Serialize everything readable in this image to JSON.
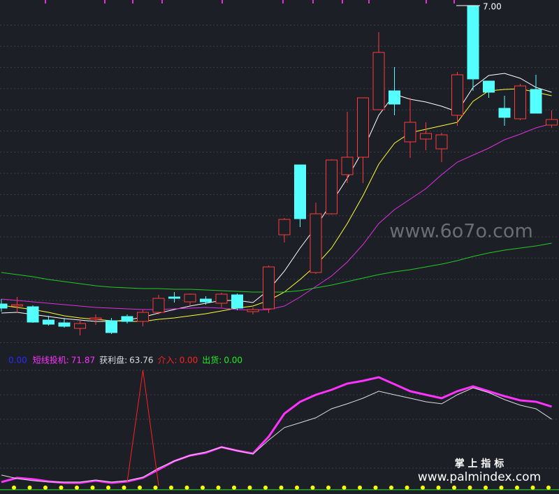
{
  "chart_data": [
    {
      "type": "candlestick",
      "ylim": [
        2.03,
        7.08
      ],
      "up_color": "#ff3b3b",
      "down_color": "#54ffff",
      "open": [
        2.73,
        2.7,
        2.69,
        2.5,
        2.46,
        2.38,
        2.51,
        2.49,
        2.55,
        2.48,
        2.61,
        2.83,
        2.76,
        2.8,
        2.74,
        2.86,
        2.62,
        2.66,
        3.72,
        4.72,
        3.18,
        4.02,
        4.58,
        4.83,
        5.51,
        5.78,
        5.05,
        5.09,
        4.95,
        5.43,
        7.0,
        5.92,
        5.53,
        5.38,
        5.8,
        5.29
      ],
      "close": [
        2.67,
        2.72,
        2.47,
        2.44,
        2.41,
        2.45,
        2.53,
        2.32,
        2.48,
        2.61,
        2.81,
        2.81,
        2.87,
        2.76,
        2.87,
        2.67,
        2.65,
        3.26,
        3.94,
        3.95,
        4.02,
        4.79,
        4.83,
        5.68,
        6.33,
        5.59,
        5.33,
        5.17,
        5.15,
        6.01,
        5.95,
        5.76,
        5.4,
        5.85,
        5.46,
        5.37
      ],
      "high": [
        2.8,
        2.83,
        2.71,
        2.56,
        2.53,
        2.5,
        2.58,
        2.53,
        2.58,
        2.65,
        2.86,
        2.9,
        2.88,
        2.84,
        2.89,
        2.88,
        2.68,
        3.28,
        3.96,
        4.72,
        4.18,
        4.8,
        5.48,
        5.68,
        6.62,
        6.12,
        5.68,
        5.33,
        5.18,
        6.05,
        7.0,
        5.92,
        5.71,
        5.88,
        6.01,
        5.5
      ],
      "low": [
        2.62,
        2.6,
        2.46,
        2.42,
        2.39,
        2.28,
        2.43,
        2.3,
        2.45,
        2.41,
        2.58,
        2.75,
        2.71,
        2.72,
        2.68,
        2.64,
        2.58,
        2.6,
        3.61,
        3.83,
        3.16,
        4.01,
        4.46,
        4.46,
        5.51,
        5.43,
        4.82,
        4.93,
        4.76,
        5.28,
        5.78,
        5.68,
        5.28,
        5.36,
        5.46,
        5.25
      ],
      "series": [
        {
          "color": "#ffffff",
          "values": [
            2.6,
            2.61,
            2.58,
            2.55,
            2.52,
            2.5,
            2.48,
            2.48,
            2.5,
            2.54,
            2.6,
            2.65,
            2.7,
            2.74,
            2.78,
            2.78,
            2.75,
            2.93,
            3.2,
            3.53,
            3.83,
            4.18,
            4.53,
            4.93,
            5.43,
            5.73,
            5.66,
            5.62,
            5.56,
            5.48,
            5.83,
            6.0,
            6.03,
            5.96,
            5.83,
            5.76
          ]
        },
        {
          "color": "#ffff33",
          "values": [
            2.71,
            2.68,
            2.65,
            2.61,
            2.56,
            2.53,
            2.51,
            2.49,
            2.48,
            2.48,
            2.51,
            2.53,
            2.56,
            2.59,
            2.63,
            2.67,
            2.7,
            2.78,
            2.9,
            3.08,
            3.28,
            3.53,
            3.88,
            4.28,
            4.73,
            5.03,
            5.18,
            5.23,
            5.28,
            5.33,
            5.63,
            5.78,
            5.8,
            5.81,
            5.76,
            5.71
          ]
        },
        {
          "color": "#e030e0",
          "values": [
            2.8,
            2.78,
            2.76,
            2.74,
            2.72,
            2.7,
            2.68,
            2.67,
            2.66,
            2.65,
            2.65,
            2.66,
            2.67,
            2.68,
            2.67,
            2.65,
            2.64,
            2.65,
            2.7,
            2.83,
            2.98,
            3.13,
            3.33,
            3.58,
            3.88,
            4.08,
            4.23,
            4.38,
            4.58,
            4.76,
            4.86,
            4.96,
            5.08,
            5.16,
            5.25,
            5.31
          ]
        },
        {
          "color": "#22cc22",
          "values": [
            3.18,
            3.15,
            3.12,
            3.08,
            3.05,
            3.02,
            2.99,
            2.97,
            2.96,
            2.95,
            2.95,
            2.94,
            2.94,
            2.93,
            2.92,
            2.91,
            2.9,
            2.9,
            2.9,
            2.92,
            2.96,
            3.0,
            3.05,
            3.1,
            3.15,
            3.19,
            3.22,
            3.26,
            3.3,
            3.35,
            3.41,
            3.46,
            3.5,
            3.53,
            3.56,
            3.6
          ]
        }
      ],
      "annotation": {
        "label": "7.00",
        "index": 30
      }
    },
    {
      "type": "line",
      "ylim": [
        15.6,
        106.5
      ],
      "lead_readout": "0.00",
      "lead_color": "#2a2aff",
      "series": [
        {
          "name": "短线投机:",
          "readout": "71.87",
          "color": "#ff33ff",
          "width": 3,
          "values": [
            23.3,
            26.0,
            25.1,
            23.7,
            22.8,
            22.8,
            24.2,
            22.8,
            23.7,
            26.0,
            31.4,
            36.8,
            40.4,
            42.2,
            45.8,
            43.5,
            41.7,
            52.5,
            67.4,
            75.0,
            79.5,
            82.7,
            86.7,
            88.5,
            90.8,
            86.3,
            81.8,
            79.5,
            77.3,
            81.8,
            84.9,
            81.8,
            78.6,
            75.9,
            75.0,
            71.87
          ]
        },
        {
          "name": "获利盘:",
          "readout": "63.76",
          "color": "#dddddd",
          "width": 1,
          "values": [
            27.8,
            25.5,
            24.2,
            23.3,
            23.3,
            23.3,
            24.6,
            23.3,
            24.2,
            26.4,
            32.3,
            36.8,
            40.4,
            42.6,
            45.8,
            43.5,
            41.3,
            50.3,
            58.4,
            61.5,
            64.7,
            70.5,
            73.7,
            77.3,
            81.8,
            79.5,
            77.3,
            75.0,
            73.7,
            79.5,
            84.0,
            80.9,
            76.4,
            72.8,
            70.5,
            63.76
          ]
        },
        {
          "name": "介入:",
          "readout": "0.00",
          "color": "#ff2020",
          "width": 1,
          "values": [
            null,
            null,
            null,
            null,
            null,
            null,
            null,
            null,
            23.3,
            95.3,
            21.0,
            null,
            null,
            null,
            null,
            null,
            null,
            null,
            null,
            null,
            null,
            null,
            null,
            null,
            null,
            null,
            null,
            null,
            null,
            null,
            null,
            null,
            null,
            null,
            null,
            null
          ]
        },
        {
          "name": "出货:",
          "readout": "0.00",
          "color": "#22ee22",
          "marker": "dot",
          "dot_color": "#ffff00",
          "values": [
            19.7,
            19.7,
            19.7,
            19.7,
            19.7,
            19.7,
            19.7,
            19.7,
            19.7,
            19.7,
            19.7,
            19.7,
            19.7,
            19.7,
            19.7,
            19.7,
            19.7,
            19.7,
            19.7,
            19.7,
            19.7,
            19.7,
            19.7,
            19.7,
            19.7,
            19.7,
            19.7,
            19.7,
            19.7,
            19.7,
            19.7,
            19.7,
            19.7,
            19.7,
            19.7,
            19.7
          ]
        }
      ]
    }
  ],
  "watermarks": [
    "www.6o7o.com",
    "掌 上 指 标",
    "www.palmindex.com"
  ]
}
